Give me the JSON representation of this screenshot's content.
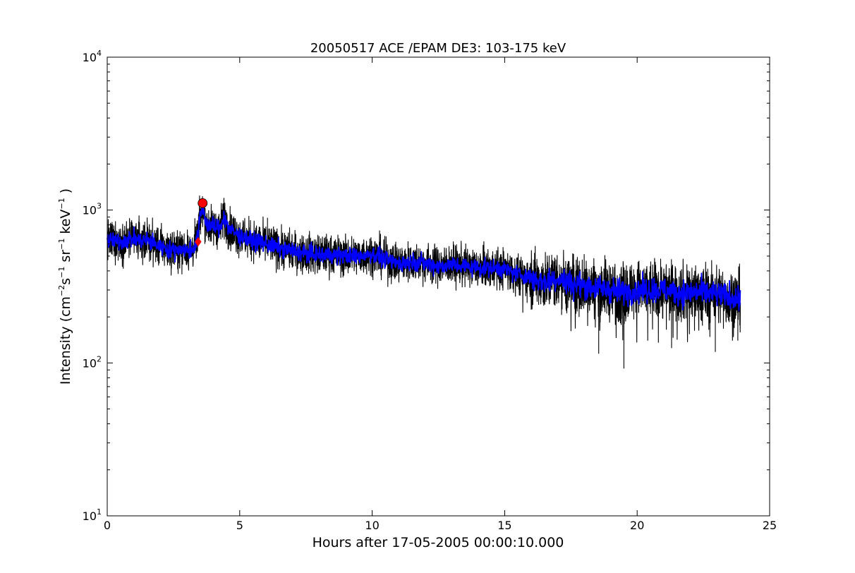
{
  "chart_data": {
    "type": "line",
    "title": "20050517 ACE /EPAM DE3: 103-175 keV",
    "xlabel": "Hours after 17-05-2005 00:00:10.000",
    "ylabel": {
      "prefix": "Intensity (cm",
      "exp1": "−2",
      "mid1": "s",
      "exp2": "−1",
      "mid2": " sr",
      "exp3": "−1",
      "mid3": " keV",
      "exp4": "−1",
      "suffix": " )"
    },
    "xlim": [
      0,
      25
    ],
    "ylim": [
      10,
      10000
    ],
    "yscale": "log",
    "grid": false,
    "x_ticks": [
      "0",
      "5",
      "10",
      "15",
      "20",
      "25"
    ],
    "y_ticks": [
      {
        "base": "10",
        "exp": "1"
      },
      {
        "base": "10",
        "exp": "2"
      },
      {
        "base": "10",
        "exp": "3"
      },
      {
        "base": "10",
        "exp": "4"
      }
    ],
    "series": [
      {
        "color": "#000000",
        "x": [
          0.0,
          0.25,
          0.5,
          0.75,
          1.0,
          1.25,
          1.5,
          1.75,
          2.0,
          2.25,
          2.5,
          2.75,
          3.0,
          3.25,
          3.4,
          3.5,
          3.6,
          3.75,
          4.0,
          4.25,
          4.4,
          4.6,
          5.0,
          5.5,
          6.0,
          6.5,
          7.0,
          7.5,
          8.0,
          8.5,
          9.0,
          9.5,
          10.0,
          10.5,
          11.0,
          11.5,
          12.0,
          12.5,
          13.0,
          13.5,
          14.0,
          14.5,
          15.0,
          15.5,
          16.0,
          16.5,
          17.0,
          17.5,
          18.0,
          18.5,
          19.0,
          19.5,
          20.0,
          20.5,
          21.0,
          21.5,
          22.0,
          22.5,
          23.0,
          23.5,
          23.9
        ],
        "y": [
          640,
          630,
          620,
          640,
          650,
          630,
          640,
          600,
          580,
          560,
          540,
          560,
          540,
          560,
          650,
          880,
          1050,
          800,
          780,
          760,
          920,
          750,
          680,
          630,
          600,
          560,
          540,
          520,
          510,
          510,
          500,
          500,
          520,
          470,
          450,
          460,
          450,
          430,
          440,
          430,
          420,
          420,
          410,
          380,
          360,
          340,
          360,
          330,
          320,
          310,
          300,
          290,
          300,
          300,
          300,
          290,
          290,
          290,
          280,
          270,
          260
        ],
        "noise": 0.14
      },
      {
        "color": "#0000ff",
        "x": [
          0.0,
          0.25,
          0.5,
          0.75,
          1.0,
          1.25,
          1.5,
          1.75,
          2.0,
          2.25,
          2.5,
          2.75,
          3.0,
          3.25,
          3.4,
          3.5,
          3.6,
          3.75,
          4.0,
          4.25,
          4.4,
          4.6,
          5.0,
          5.5,
          6.0,
          6.5,
          7.0,
          7.5,
          8.0,
          8.5,
          9.0,
          9.5,
          10.0,
          10.5,
          11.0,
          11.5,
          12.0,
          12.5,
          13.0,
          13.5,
          14.0,
          14.5,
          15.0,
          15.5,
          16.0,
          16.5,
          17.0,
          17.5,
          18.0,
          18.5,
          19.0,
          19.5,
          20.0,
          20.5,
          21.0,
          21.5,
          22.0,
          22.5,
          23.0,
          23.5,
          23.9
        ],
        "y": [
          640,
          630,
          620,
          640,
          650,
          630,
          640,
          600,
          580,
          560,
          540,
          560,
          540,
          560,
          650,
          880,
          1050,
          800,
          780,
          760,
          920,
          750,
          680,
          630,
          600,
          560,
          540,
          520,
          510,
          510,
          500,
          500,
          520,
          470,
          450,
          460,
          450,
          430,
          440,
          430,
          420,
          420,
          410,
          380,
          360,
          340,
          360,
          330,
          320,
          310,
          300,
          290,
          300,
          300,
          300,
          290,
          290,
          290,
          280,
          270,
          260
        ],
        "noise": 0.06
      }
    ],
    "spikes": [
      {
        "x": 6.05,
        "y": 890
      },
      {
        "x": 18.55,
        "y": 115
      },
      {
        "x": 19.5,
        "y": 92
      },
      {
        "x": 21.3,
        "y": 125
      },
      {
        "x": 22.95,
        "y": 118
      },
      {
        "x": 23.8,
        "y": 140
      }
    ],
    "markers": [
      {
        "shape": "diamond",
        "x": 3.43,
        "y": 620,
        "color": "#ff0000"
      },
      {
        "shape": "circle",
        "x": 3.6,
        "y": 1110,
        "color": "#ff0000"
      }
    ]
  }
}
